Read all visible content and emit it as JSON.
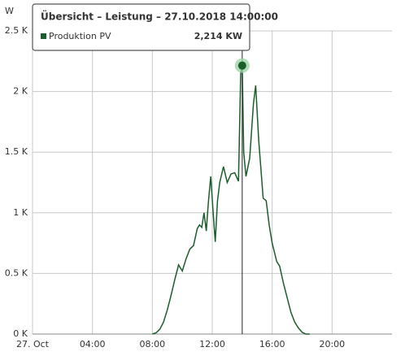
{
  "chart_data": {
    "type": "line",
    "y_label": "W",
    "x": [
      8,
      8.25,
      8.5,
      8.75,
      9,
      9.25,
      9.5,
      9.75,
      10,
      10.25,
      10.5,
      10.75,
      11,
      11.15,
      11.3,
      11.45,
      11.6,
      11.75,
      11.9,
      12.05,
      12.2,
      12.35,
      12.5,
      12.75,
      13,
      13.25,
      13.5,
      13.75,
      13.9,
      14,
      14.1,
      14.25,
      14.5,
      14.75,
      14.9,
      15.1,
      15.4,
      15.6,
      15.8,
      16,
      16.3,
      16.5,
      16.75,
      17,
      17.25,
      17.5,
      17.75,
      18,
      18.25,
      18.5
    ],
    "series": [
      {
        "name": "Produktion PV",
        "color": "#1b5e2c",
        "values": [
          0,
          10,
          40,
          100,
          200,
          320,
          450,
          570,
          520,
          620,
          700,
          730,
          870,
          900,
          880,
          1000,
          850,
          1100,
          1300,
          1020,
          760,
          1100,
          1250,
          1380,
          1250,
          1320,
          1330,
          1260,
          2150,
          2214,
          1500,
          1300,
          1450,
          1900,
          2050,
          1600,
          1120,
          1100,
          900,
          750,
          600,
          560,
          420,
          300,
          180,
          100,
          50,
          15,
          0,
          0
        ]
      }
    ],
    "xlim": [
      0,
      24
    ],
    "xticks": [
      {
        "value": 0,
        "label": "27. Oct"
      },
      {
        "value": 4,
        "label": "04:00"
      },
      {
        "value": 8,
        "label": "08:00"
      },
      {
        "value": 12,
        "label": "12:00"
      },
      {
        "value": 16,
        "label": "16:00"
      },
      {
        "value": 20,
        "label": "20:00"
      }
    ],
    "ylim": [
      0,
      2500
    ],
    "yticks": [
      {
        "value": 0,
        "label": "0 K"
      },
      {
        "value": 500,
        "label": "0.5 K"
      },
      {
        "value": 1000,
        "label": "1 K"
      },
      {
        "value": 1500,
        "label": "1.5 K"
      },
      {
        "value": 2000,
        "label": "2 K"
      },
      {
        "value": 2500,
        "label": "2.5 K"
      }
    ],
    "grid": true,
    "tooltip": {
      "title": "Übersicht – Leistung – 27.10.2018 14:00:00",
      "value_label": "2,214 KW"
    }
  }
}
